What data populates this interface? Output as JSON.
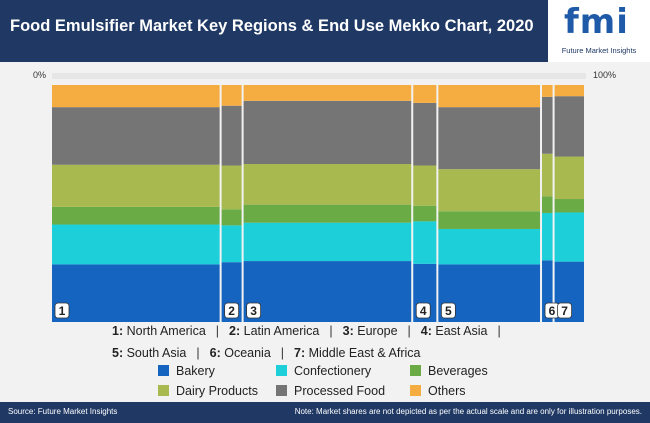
{
  "header": {
    "title": "Food Emulsifier Market Key Regions & End Use Mekko Chart, 2020"
  },
  "logo": {
    "letters": "fmi",
    "tagline": "Future Market Insights"
  },
  "colors": {
    "header_bg": "#1f3864",
    "Bakery": "#1565c0",
    "Confectionery": "#1ccfd9",
    "Beverages": "#6aab45",
    "Dairy Products": "#a7b94f",
    "Processed Food": "#757575",
    "Others": "#f5ad42"
  },
  "chart_data": {
    "type": "mekko",
    "axis": {
      "min_label": "0%",
      "max_label": "100%"
    },
    "segments": [
      "Bakery",
      "Confectionery",
      "Beverages",
      "Dairy Products",
      "Processed Food",
      "Others"
    ],
    "columns": [
      {
        "id": "1",
        "region": "North America",
        "width_pct": 27,
        "shares": [
          26,
          18,
          8,
          19,
          26,
          10
        ]
      },
      {
        "id": "2",
        "region": "Latin America",
        "width_pct": 3.5,
        "shares": [
          26,
          16,
          7,
          19,
          26,
          9
        ]
      },
      {
        "id": "3",
        "region": "Europe",
        "width_pct": 27,
        "shares": [
          27,
          17,
          8,
          18,
          28,
          7
        ]
      },
      {
        "id": "4",
        "region": "East Asia",
        "width_pct": 4,
        "shares": [
          26,
          19,
          7,
          18,
          28,
          8
        ]
      },
      {
        "id": "5",
        "region": "South Asia",
        "width_pct": 16.5,
        "shares": [
          26,
          16,
          8,
          19,
          28,
          10
        ]
      },
      {
        "id": "6",
        "region": "Oceania",
        "width_pct": 2,
        "shares": [
          26,
          20,
          7,
          18,
          24,
          5
        ]
      },
      {
        "id": "7",
        "region": "Middle East & Africa",
        "width_pct": 5,
        "shares": [
          27,
          22,
          6,
          19,
          27,
          5
        ]
      }
    ]
  },
  "legend": {
    "regions_line1": [
      {
        "num": "1",
        "name": "North America"
      },
      {
        "num": "2",
        "name": "Latin America"
      },
      {
        "num": "3",
        "name": "Europe"
      },
      {
        "num": "4",
        "name": "East Asia"
      }
    ],
    "regions_line2": [
      {
        "num": "5",
        "name": "South Asia"
      },
      {
        "num": "6",
        "name": "Oceania"
      },
      {
        "num": "7",
        "name": "Middle East & Africa"
      }
    ],
    "separator": "|",
    "segments_line1": [
      "Bakery",
      "Confectionery",
      "Beverages"
    ],
    "segments_line2": [
      "Dairy Products",
      "Processed Food",
      "Others"
    ]
  },
  "footer": {
    "source": "Source: Future Market Insights",
    "note": "Note: Market shares are not depicted as per the actual scale and are only for illustration purposes."
  }
}
